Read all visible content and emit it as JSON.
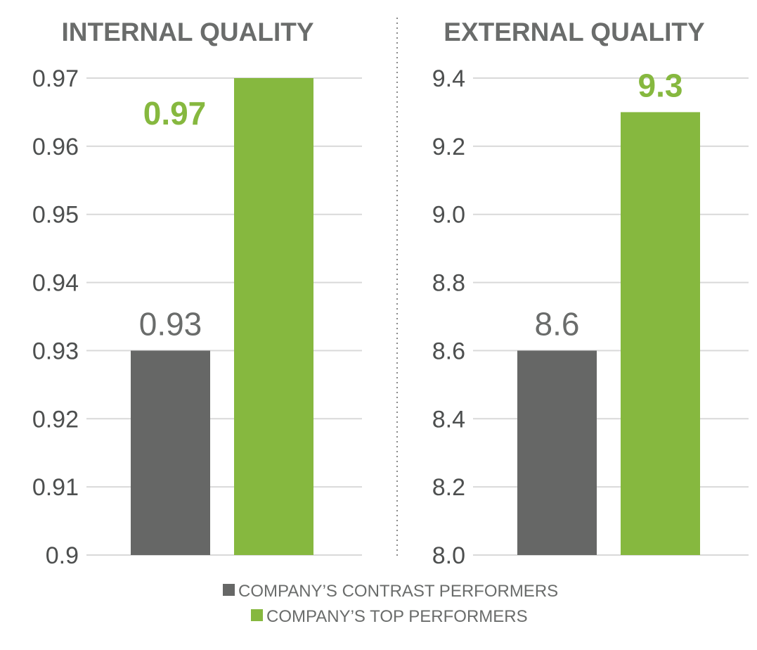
{
  "colors": {
    "contrast": "#666766",
    "top": "#86b83f",
    "grid": "#d9d9d9",
    "text": "#6a6c6b"
  },
  "legend": [
    {
      "label": "COMPANY’S CONTRAST PERFORMERS",
      "color": "#666766"
    },
    {
      "label": "COMPANY’S TOP PERFORMERS",
      "color": "#86b83f"
    }
  ],
  "chart_data": [
    {
      "type": "bar",
      "title": "INTERNAL QUALITY",
      "ylim": [
        0.9,
        0.97
      ],
      "yticks": [
        "0.9",
        "0.91",
        "0.92",
        "0.93",
        "0.94",
        "0.95",
        "0.96",
        "0.97"
      ],
      "grid": true,
      "series": [
        {
          "name": "COMPANY’S CONTRAST PERFORMERS",
          "values": [
            0.93
          ],
          "label": "0.93"
        },
        {
          "name": "COMPANY’S TOP PERFORMERS",
          "values": [
            0.97
          ],
          "label": "0.97"
        }
      ]
    },
    {
      "type": "bar",
      "title": "EXTERNAL QUALITY",
      "ylim": [
        8.0,
        9.4
      ],
      "yticks": [
        "8.0",
        "8.2",
        "8.4",
        "8.6",
        "8.8",
        "9.0",
        "9.2",
        "9.4"
      ],
      "grid": true,
      "series": [
        {
          "name": "COMPANY’S CONTRAST PERFORMERS",
          "values": [
            8.6
          ],
          "label": "8.6"
        },
        {
          "name": "COMPANY’S TOP PERFORMERS",
          "values": [
            9.3
          ],
          "label": "9.3"
        }
      ]
    }
  ]
}
